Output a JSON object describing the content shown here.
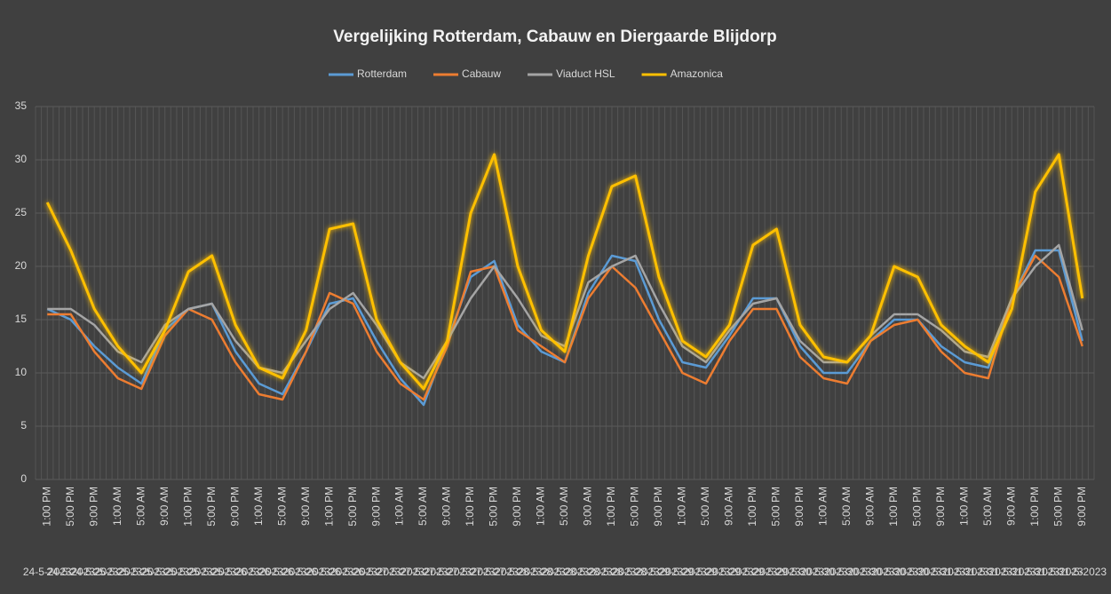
{
  "chart_data": {
    "type": "line",
    "title": "Vergelijking Rotterdam, Cabauw en Diergaarde Blijdorp",
    "categories": [
      "1:00 PM",
      "5:00 PM",
      "9:00 PM",
      "1:00 AM",
      "5:00 AM",
      "9:00 AM",
      "1:00 PM",
      "5:00 PM",
      "9:00 PM",
      "1:00 AM",
      "5:00 AM",
      "9:00 AM",
      "1:00 PM",
      "5:00 PM",
      "9:00 PM",
      "1:00 AM",
      "5:00 AM",
      "9:00 AM",
      "1:00 PM",
      "5:00 PM",
      "9:00 PM",
      "1:00 AM",
      "5:00 AM",
      "9:00 AM",
      "1:00 PM",
      "5:00 PM",
      "9:00 PM",
      "1:00 AM",
      "5:00 AM",
      "9:00 AM",
      "1:00 PM",
      "5:00 PM",
      "9:00 PM",
      "1:00 AM",
      "5:00 AM",
      "9:00 AM",
      "1:00 PM",
      "5:00 PM",
      "9:00 PM",
      "1:00 AM",
      "5:00 AM",
      "9:00 AM",
      "1:00 PM",
      "5:00 PM",
      "9:00 PM"
    ],
    "dates": [
      "24-5-2023",
      "24-5-2023",
      "24-5-2023",
      "25-5-2023",
      "25-5-2023",
      "25-5-2023",
      "25-5-2023",
      "25-5-2023",
      "25-5-2023",
      "26-5-2023",
      "26-5-2023",
      "26-5-2023",
      "26-5-2023",
      "26-5-2023",
      "26-5-2023",
      "27-5-2023",
      "27-5-2023",
      "27-5-2023",
      "27-5-2023",
      "27-5-2023",
      "27-5-2023",
      "28-5-2023",
      "28-5-2023",
      "28-5-2023",
      "28-5-2023",
      "28-5-2023",
      "28-5-2023",
      "29-5-2023",
      "29-5-2023",
      "29-5-2023",
      "29-5-2023",
      "29-5-2023",
      "29-5-2023",
      "30-5-2023",
      "30-5-2023",
      "30-5-2023",
      "30-5-2023",
      "30-5-2023",
      "30-5-2023",
      "31-5-2023",
      "31-5-2023",
      "31-5-2023",
      "31-5-2023",
      "31-5-2023",
      "31-5-2023"
    ],
    "series": [
      {
        "name": "Rotterdam",
        "color": "#5b9bd5",
        "values": [
          16,
          15,
          12.5,
          10.5,
          9,
          14,
          16,
          16.5,
          12,
          9,
          8,
          12,
          16.5,
          17,
          13,
          9.5,
          7,
          13,
          19,
          20.5,
          14.5,
          12,
          11,
          17.5,
          21,
          20.5,
          15,
          11,
          10.5,
          13.5,
          17,
          17,
          12.5,
          10,
          10,
          13,
          15,
          15,
          12.5,
          11,
          10.5,
          17,
          21.5,
          21.5,
          13
        ]
      },
      {
        "name": "Cabauw",
        "color": "#ed7d31",
        "values": [
          15.5,
          15.5,
          12,
          9.5,
          8.5,
          13.5,
          16,
          15,
          11,
          8,
          7.5,
          12,
          17.5,
          16.5,
          12,
          9,
          7.5,
          12.5,
          19.5,
          20,
          14,
          12.5,
          11,
          17,
          20,
          18,
          14,
          10,
          9,
          13,
          16,
          16,
          11.5,
          9.5,
          9,
          13,
          14.5,
          15,
          12,
          10,
          9.5,
          17,
          21,
          19,
          12.5
        ]
      },
      {
        "name": "Viaduct HSL",
        "color": "#a5a5a5",
        "values": [
          16,
          16,
          14.5,
          12,
          11,
          14.5,
          16,
          16.5,
          13,
          10.5,
          10,
          13,
          16,
          17.5,
          14.5,
          11,
          9.5,
          13,
          17,
          20,
          17,
          13.5,
          12.5,
          18.5,
          20,
          21,
          16.5,
          12.5,
          11,
          14,
          16.5,
          17,
          13,
          11,
          11,
          13.5,
          15.5,
          15.5,
          14,
          12,
          11.5,
          17,
          20,
          22,
          14
        ]
      },
      {
        "name": "Amazonica",
        "color": "#ffc000",
        "values": [
          26,
          21.5,
          16,
          12.5,
          10,
          14,
          19.5,
          21,
          14.5,
          10.5,
          9.5,
          14,
          23.5,
          24,
          15,
          11,
          8.5,
          13,
          25,
          30.5,
          20,
          14,
          12,
          21,
          27.5,
          28.5,
          19,
          13,
          11.5,
          14.5,
          22,
          23.5,
          14.5,
          11.5,
          11,
          13.5,
          20,
          19,
          14.5,
          12.5,
          11,
          16,
          27,
          30.5,
          17
        ]
      }
    ],
    "ylim": [
      0,
      35
    ],
    "yticks": [
      0,
      5,
      10,
      15,
      20,
      25,
      30,
      35
    ],
    "grid": true,
    "legend": "top"
  }
}
